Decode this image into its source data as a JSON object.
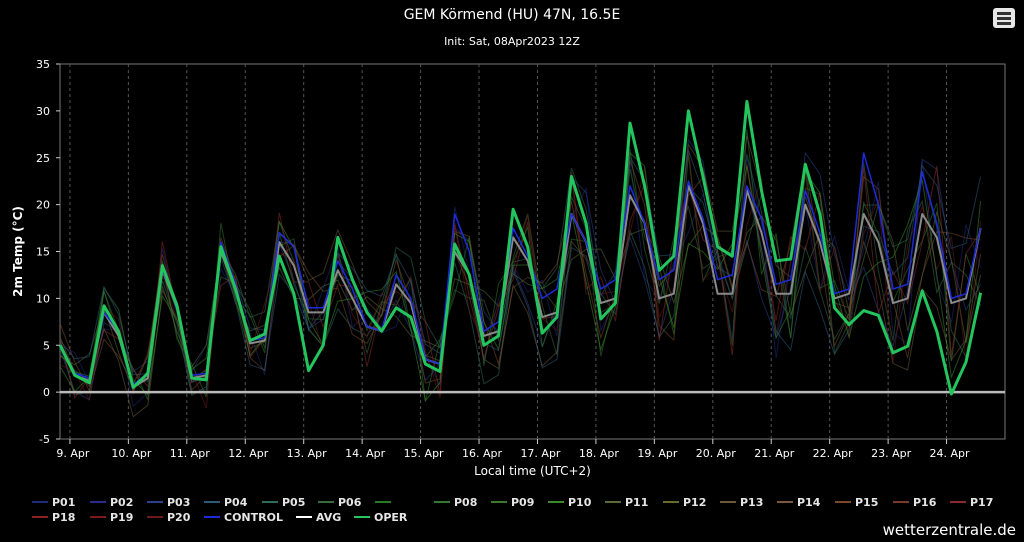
{
  "header": {
    "title": "GEM Körmend (HU) 47N, 16.5E",
    "subtitle": "Init: Sat, 08Apr2023 12Z",
    "menu_icon": "hamburger-menu-icon"
  },
  "brand": "wetterzentrale.de",
  "chart_data": {
    "type": "line",
    "title": "GEM Körmend (HU) 47N, 16.5E",
    "subtitle": "Init: Sat, 08Apr2023 12Z",
    "xlabel": "Local time (UTC+2)",
    "ylabel": "2m Temp (°C)",
    "ylim": [
      -5,
      35
    ],
    "yticks": [
      -5,
      0,
      5,
      10,
      15,
      20,
      25,
      30,
      35
    ],
    "xlim": [
      8.83,
      25.0
    ],
    "xtick_values": [
      9,
      10,
      11,
      12,
      13,
      14,
      15,
      16,
      17,
      18,
      19,
      20,
      21,
      22,
      23,
      24
    ],
    "xtick_labels": [
      "9. Apr",
      "10. Apr",
      "11. Apr",
      "12. Apr",
      "13. Apr",
      "14. Apr",
      "15. Apr",
      "16. Apr",
      "17. Apr",
      "18. Apr",
      "19. Apr",
      "20. Apr",
      "21. Apr",
      "22. Apr",
      "23. Apr",
      "24. Apr"
    ],
    "x_step_days": 0.25,
    "x_start": 8.833,
    "grid": "dashed vertical at day ticks",
    "legend_position": "bottom",
    "series": [
      {
        "name": "OPER",
        "color": "#22c55e",
        "width": 3,
        "values": [
          5.0,
          1.8,
          1.0,
          9.2,
          6.5,
          0.5,
          2.0,
          13.5,
          9.2,
          1.5,
          1.3,
          15.5,
          11.0,
          5.5,
          6.2,
          14.5,
          10.5,
          2.3,
          5.0,
          16.5,
          12.0,
          8.5,
          6.5,
          9.0,
          8.0,
          3.0,
          2.2,
          15.8,
          12.5,
          5.0,
          6.0,
          19.5,
          15.5,
          6.3,
          8.0,
          23.0,
          18.0,
          7.8,
          9.5,
          28.7,
          22.0,
          13.0,
          14.5,
          30.0,
          23.0,
          15.5,
          14.5,
          31.0,
          21.5,
          14.0,
          14.2,
          24.3,
          19.0,
          9.0,
          7.2,
          8.7,
          8.2,
          4.2,
          4.9,
          10.8,
          6.5,
          -0.2,
          3.2,
          10.6
        ]
      },
      {
        "name": "CONTROL",
        "color": "#1d2bd8",
        "width": 1.5,
        "values": [
          5.0,
          2.0,
          1.5,
          8.5,
          6.5,
          0.8,
          2.0,
          13.0,
          9.5,
          1.8,
          2.0,
          16.0,
          11.5,
          5.5,
          5.8,
          17.0,
          15.5,
          9.0,
          9.0,
          14.0,
          11.0,
          7.0,
          6.5,
          12.5,
          10.0,
          3.5,
          3.0,
          19.0,
          15.0,
          6.5,
          7.5,
          17.5,
          14.5,
          10.0,
          11.0,
          19.0,
          16.0,
          11.0,
          12.0,
          22.0,
          18.0,
          12.0,
          13.0,
          22.5,
          18.5,
          12.0,
          12.5,
          22.0,
          18.5,
          11.5,
          12.0,
          21.5,
          17.0,
          10.5,
          11.0,
          25.5,
          20.0,
          11.0,
          11.5,
          23.5,
          18.0,
          10.0,
          10.5,
          17.5
        ]
      },
      {
        "name": "AVG",
        "color": "#8a8a8a",
        "width": 2,
        "values": [
          5.0,
          1.8,
          1.2,
          8.5,
          6.0,
          0.5,
          1.5,
          13.0,
          9.0,
          1.5,
          1.8,
          15.0,
          11.0,
          5.2,
          5.5,
          16.0,
          13.5,
          8.5,
          8.5,
          13.0,
          10.0,
          7.0,
          6.5,
          11.5,
          9.5,
          3.5,
          3.0,
          15.0,
          12.5,
          6.0,
          6.5,
          16.5,
          14.0,
          8.0,
          8.5,
          19.0,
          16.0,
          9.5,
          10.0,
          21.0,
          18.0,
          10.0,
          10.5,
          22.0,
          18.0,
          10.5,
          10.5,
          21.5,
          17.0,
          10.5,
          10.5,
          20.0,
          16.0,
          10.0,
          10.5,
          19.0,
          16.0,
          9.5,
          10.0,
          19.0,
          16.5,
          9.5,
          10.0,
          17.5
        ]
      }
    ],
    "hline": {
      "y": 0,
      "color": "#ffffff"
    }
  },
  "legend": {
    "row1": [
      "P01",
      "P02",
      "P03",
      "P04",
      "P05",
      "P06",
      "",
      "P08",
      "P09",
      "P10",
      "P11",
      "P12",
      "P13",
      "P14",
      "P15",
      "P16",
      "P17"
    ],
    "row2": [
      "P18",
      "P19",
      "P20",
      "CONTROL",
      "AVG",
      "OPER"
    ],
    "colors_row1": [
      "#1e2a7a",
      "#2a2a8a",
      "#2b3f8a",
      "#2e5a7a",
      "#2f6a5a",
      "#3a6a3a",
      "#2a7a2a",
      "#2f7a2f",
      "#3a7a2a",
      "#3a8a2a",
      "#5a6a3a",
      "#6a6a2a",
      "#6a5a3a",
      "#7a5a3a",
      "#7a4a2a",
      "#7a3a2a",
      "#8a2a2a"
    ],
    "colors_row2": [
      "#8a2020",
      "#7a1a1a",
      "#6a1a1a",
      "#1d2bd8",
      "#ffffff",
      "#22c55e"
    ]
  }
}
